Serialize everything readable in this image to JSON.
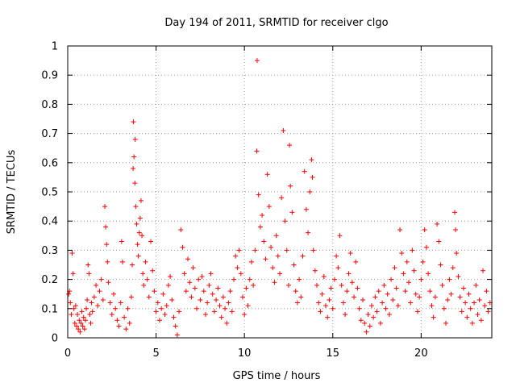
{
  "chart_data": {
    "type": "scatter",
    "title": "Day 194 of 2011, SRMTID for receiver clgo",
    "xlabel": "GPS time / hours",
    "ylabel": "SRMTID / TECUs",
    "xlim": [
      0,
      24
    ],
    "ylim": [
      0,
      1
    ],
    "xticks": [
      "0",
      "5",
      "10",
      "15",
      "20"
    ],
    "xtick_values": [
      0,
      5,
      10,
      15,
      20
    ],
    "yticks": [
      "0",
      "0.1",
      "0.2",
      "0.3",
      "0.4",
      "0.5",
      "0.6",
      "0.7",
      "0.8",
      "0.9",
      "1"
    ],
    "ytick_values": [
      0,
      0.1,
      0.2,
      0.3,
      0.4,
      0.5,
      0.6,
      0.7,
      0.8,
      0.9,
      1
    ],
    "grid": true,
    "marker": "plus",
    "color": "#ff0000",
    "series": [
      {
        "values": [
          [
            0.05,
            0.15
          ],
          [
            0.1,
            0.16
          ],
          [
            0.15,
            0.12
          ],
          [
            0.2,
            0.08
          ],
          [
            0.25,
            0.29
          ],
          [
            0.3,
            0.22
          ],
          [
            0.35,
            0.1
          ],
          [
            0.4,
            0.05
          ],
          [
            0.45,
            0.11
          ],
          [
            0.5,
            0.04
          ],
          [
            0.55,
            0.08
          ],
          [
            0.6,
            0.03
          ],
          [
            0.65,
            0.06
          ],
          [
            0.7,
            0.02
          ],
          [
            0.75,
            0.05
          ],
          [
            0.8,
            0.09
          ],
          [
            0.85,
            0.04
          ],
          [
            0.9,
            0.07
          ],
          [
            0.95,
            0.03
          ],
          [
            1.0,
            0.06
          ],
          [
            1.05,
            0.1
          ],
          [
            1.1,
            0.13
          ],
          [
            1.15,
            0.25
          ],
          [
            1.2,
            0.22
          ],
          [
            1.25,
            0.08
          ],
          [
            1.3,
            0.05
          ],
          [
            1.35,
            0.12
          ],
          [
            1.4,
            0.09
          ],
          [
            1.5,
            0.14
          ],
          [
            1.6,
            0.18
          ],
          [
            1.7,
            0.11
          ],
          [
            1.8,
            0.16
          ],
          [
            1.9,
            0.2
          ],
          [
            2.0,
            0.13
          ],
          [
            2.1,
            0.45
          ],
          [
            2.15,
            0.38
          ],
          [
            2.2,
            0.32
          ],
          [
            2.25,
            0.26
          ],
          [
            2.3,
            0.19
          ],
          [
            2.4,
            0.12
          ],
          [
            2.5,
            0.08
          ],
          [
            2.6,
            0.15
          ],
          [
            2.7,
            0.1
          ],
          [
            2.8,
            0.06
          ],
          [
            2.9,
            0.04
          ],
          [
            3.0,
            0.12
          ],
          [
            3.05,
            0.33
          ],
          [
            3.1,
            0.26
          ],
          [
            3.2,
            0.07
          ],
          [
            3.3,
            0.03
          ],
          [
            3.4,
            0.1
          ],
          [
            3.5,
            0.05
          ],
          [
            3.6,
            0.14
          ],
          [
            3.65,
            0.25
          ],
          [
            3.7,
            0.58
          ],
          [
            3.72,
            0.74
          ],
          [
            3.75,
            0.62
          ],
          [
            3.8,
            0.53
          ],
          [
            3.82,
            0.68
          ],
          [
            3.85,
            0.45
          ],
          [
            3.9,
            0.39
          ],
          [
            3.95,
            0.32
          ],
          [
            4.0,
            0.28
          ],
          [
            4.05,
            0.36
          ],
          [
            4.1,
            0.41
          ],
          [
            4.15,
            0.47
          ],
          [
            4.2,
            0.35
          ],
          [
            4.25,
            0.22
          ],
          [
            4.3,
            0.18
          ],
          [
            4.4,
            0.26
          ],
          [
            4.5,
            0.2
          ],
          [
            4.6,
            0.14
          ],
          [
            4.7,
            0.33
          ],
          [
            4.8,
            0.23
          ],
          [
            4.9,
            0.16
          ],
          [
            5.0,
            0.09
          ],
          [
            5.1,
            0.12
          ],
          [
            5.2,
            0.06
          ],
          [
            5.3,
            0.1
          ],
          [
            5.4,
            0.15
          ],
          [
            5.5,
            0.08
          ],
          [
            5.6,
            0.11
          ],
          [
            5.7,
            0.18
          ],
          [
            5.8,
            0.21
          ],
          [
            5.9,
            0.13
          ],
          [
            6.0,
            0.07
          ],
          [
            6.1,
            0.04
          ],
          [
            6.2,
            0.01
          ],
          [
            6.3,
            0.09
          ],
          [
            6.4,
            0.37
          ],
          [
            6.5,
            0.31
          ],
          [
            6.6,
            0.22
          ],
          [
            6.7,
            0.16
          ],
          [
            6.8,
            0.27
          ],
          [
            6.9,
            0.19
          ],
          [
            7.0,
            0.14
          ],
          [
            7.1,
            0.24
          ],
          [
            7.2,
            0.17
          ],
          [
            7.3,
            0.1
          ],
          [
            7.4,
            0.2
          ],
          [
            7.5,
            0.13
          ],
          [
            7.6,
            0.21
          ],
          [
            7.7,
            0.16
          ],
          [
            7.8,
            0.08
          ],
          [
            7.9,
            0.12
          ],
          [
            8.0,
            0.18
          ],
          [
            8.1,
            0.22
          ],
          [
            8.2,
            0.15
          ],
          [
            8.3,
            0.09
          ],
          [
            8.4,
            0.13
          ],
          [
            8.5,
            0.17
          ],
          [
            8.6,
            0.11
          ],
          [
            8.7,
            0.07
          ],
          [
            8.8,
            0.14
          ],
          [
            8.9,
            0.1
          ],
          [
            9.0,
            0.05
          ],
          [
            9.1,
            0.12
          ],
          [
            9.2,
            0.16
          ],
          [
            9.3,
            0.09
          ],
          [
            9.4,
            0.2
          ],
          [
            9.5,
            0.28
          ],
          [
            9.6,
            0.24
          ],
          [
            9.7,
            0.3
          ],
          [
            9.8,
            0.22
          ],
          [
            9.9,
            0.14
          ],
          [
            10.0,
            0.08
          ],
          [
            10.1,
            0.17
          ],
          [
            10.2,
            0.11
          ],
          [
            10.3,
            0.2
          ],
          [
            10.4,
            0.26
          ],
          [
            10.5,
            0.18
          ],
          [
            10.6,
            0.3
          ],
          [
            10.7,
            0.64
          ],
          [
            10.72,
            0.95
          ],
          [
            10.8,
            0.49
          ],
          [
            10.9,
            0.38
          ],
          [
            11.0,
            0.42
          ],
          [
            11.1,
            0.33
          ],
          [
            11.2,
            0.27
          ],
          [
            11.3,
            0.56
          ],
          [
            11.4,
            0.45
          ],
          [
            11.5,
            0.31
          ],
          [
            11.6,
            0.24
          ],
          [
            11.7,
            0.19
          ],
          [
            11.8,
            0.35
          ],
          [
            11.9,
            0.28
          ],
          [
            12.0,
            0.22
          ],
          [
            12.1,
            0.48
          ],
          [
            12.2,
            0.71
          ],
          [
            12.3,
            0.4
          ],
          [
            12.4,
            0.3
          ],
          [
            12.5,
            0.18
          ],
          [
            12.55,
            0.66
          ],
          [
            12.6,
            0.52
          ],
          [
            12.7,
            0.43
          ],
          [
            12.8,
            0.25
          ],
          [
            12.9,
            0.16
          ],
          [
            13.0,
            0.12
          ],
          [
            13.1,
            0.2
          ],
          [
            13.2,
            0.14
          ],
          [
            13.3,
            0.28
          ],
          [
            13.4,
            0.57
          ],
          [
            13.5,
            0.44
          ],
          [
            13.6,
            0.36
          ],
          [
            13.7,
            0.5
          ],
          [
            13.8,
            0.61
          ],
          [
            13.85,
            0.55
          ],
          [
            13.9,
            0.3
          ],
          [
            14.0,
            0.23
          ],
          [
            14.1,
            0.18
          ],
          [
            14.2,
            0.12
          ],
          [
            14.3,
            0.09
          ],
          [
            14.4,
            0.15
          ],
          [
            14.5,
            0.21
          ],
          [
            14.6,
            0.11
          ],
          [
            14.7,
            0.07
          ],
          [
            14.8,
            0.13
          ],
          [
            14.9,
            0.17
          ],
          [
            15.0,
            0.1
          ],
          [
            15.1,
            0.2
          ],
          [
            15.2,
            0.28
          ],
          [
            15.3,
            0.24
          ],
          [
            15.4,
            0.35
          ],
          [
            15.5,
            0.18
          ],
          [
            15.6,
            0.12
          ],
          [
            15.7,
            0.08
          ],
          [
            15.8,
            0.16
          ],
          [
            15.9,
            0.22
          ],
          [
            16.0,
            0.29
          ],
          [
            16.1,
            0.19
          ],
          [
            16.2,
            0.14
          ],
          [
            16.3,
            0.26
          ],
          [
            16.4,
            0.17
          ],
          [
            16.5,
            0.1
          ],
          [
            16.6,
            0.06
          ],
          [
            16.7,
            0.13
          ],
          [
            16.8,
            0.05
          ],
          [
            16.9,
            0.02
          ],
          [
            17.0,
            0.08
          ],
          [
            17.1,
            0.04
          ],
          [
            17.2,
            0.11
          ],
          [
            17.3,
            0.07
          ],
          [
            17.4,
            0.14
          ],
          [
            17.5,
            0.09
          ],
          [
            17.6,
            0.16
          ],
          [
            17.7,
            0.05
          ],
          [
            17.8,
            0.12
          ],
          [
            17.9,
            0.18
          ],
          [
            18.0,
            0.1
          ],
          [
            18.1,
            0.15
          ],
          [
            18.2,
            0.08
          ],
          [
            18.3,
            0.2
          ],
          [
            18.4,
            0.13
          ],
          [
            18.5,
            0.24
          ],
          [
            18.6,
            0.17
          ],
          [
            18.7,
            0.11
          ],
          [
            18.8,
            0.37
          ],
          [
            18.9,
            0.29
          ],
          [
            19.0,
            0.22
          ],
          [
            19.1,
            0.16
          ],
          [
            19.2,
            0.26
          ],
          [
            19.3,
            0.19
          ],
          [
            19.4,
            0.12
          ],
          [
            19.5,
            0.3
          ],
          [
            19.6,
            0.23
          ],
          [
            19.7,
            0.15
          ],
          [
            19.8,
            0.09
          ],
          [
            19.9,
            0.14
          ],
          [
            20.0,
            0.2
          ],
          [
            20.1,
            0.26
          ],
          [
            20.2,
            0.37
          ],
          [
            20.3,
            0.31
          ],
          [
            20.4,
            0.22
          ],
          [
            20.5,
            0.16
          ],
          [
            20.6,
            0.11
          ],
          [
            20.7,
            0.07
          ],
          [
            20.8,
            0.14
          ],
          [
            20.9,
            0.39
          ],
          [
            21.0,
            0.33
          ],
          [
            21.1,
            0.25
          ],
          [
            21.2,
            0.18
          ],
          [
            21.3,
            0.1
          ],
          [
            21.4,
            0.05
          ],
          [
            21.5,
            0.13
          ],
          [
            21.6,
            0.2
          ],
          [
            21.7,
            0.15
          ],
          [
            21.8,
            0.24
          ],
          [
            21.9,
            0.43
          ],
          [
            21.95,
            0.37
          ],
          [
            22.0,
            0.29
          ],
          [
            22.1,
            0.21
          ],
          [
            22.2,
            0.14
          ],
          [
            22.3,
            0.09
          ],
          [
            22.4,
            0.17
          ],
          [
            22.5,
            0.12
          ],
          [
            22.6,
            0.07
          ],
          [
            22.7,
            0.15
          ],
          [
            22.8,
            0.1
          ],
          [
            22.9,
            0.05
          ],
          [
            23.0,
            0.12
          ],
          [
            23.1,
            0.18
          ],
          [
            23.2,
            0.08
          ],
          [
            23.3,
            0.13
          ],
          [
            23.4,
            0.06
          ],
          [
            23.5,
            0.23
          ],
          [
            23.6,
            0.11
          ],
          [
            23.7,
            0.16
          ],
          [
            23.8,
            0.09
          ],
          [
            23.9,
            0.12
          ]
        ]
      }
    ]
  }
}
